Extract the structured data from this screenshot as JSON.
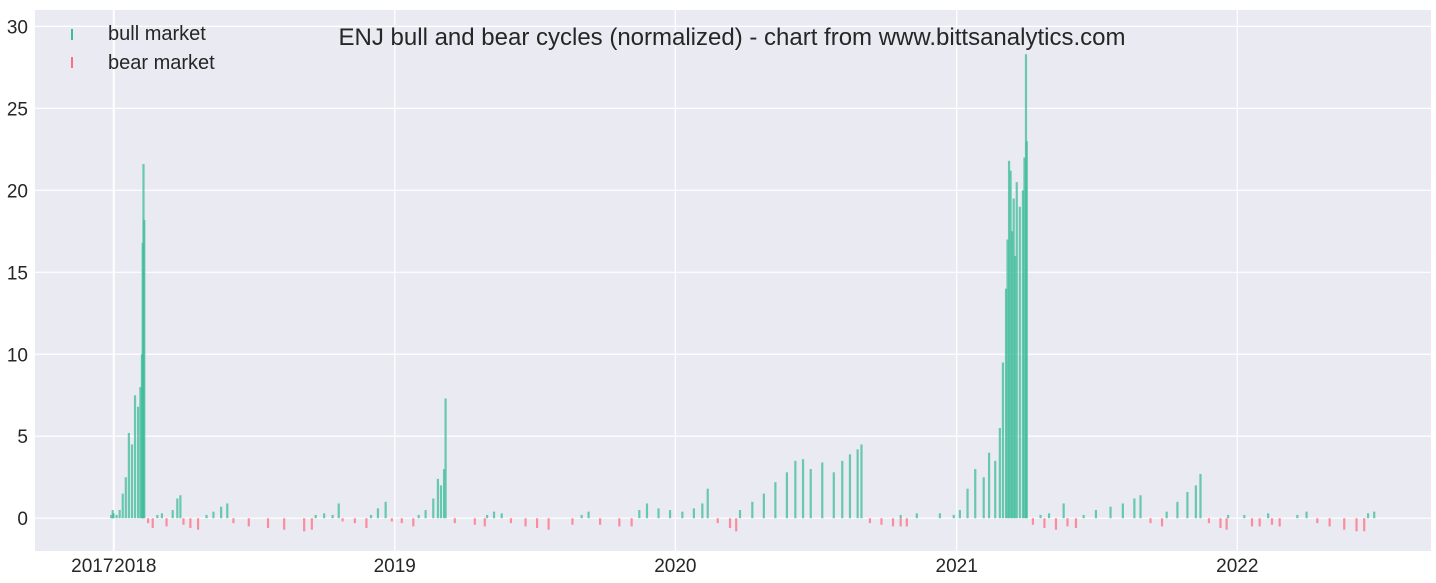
{
  "chart_data": {
    "type": "bar",
    "title": "ENJ bull and bear cycles (normalized)  - chart from www.bittsanalytics.com",
    "xlabel": "",
    "ylabel": "",
    "x_range": [
      "2017-09-20",
      "2022-09-10"
    ],
    "ylim": [
      -2,
      31
    ],
    "y_ticks": [
      0,
      5,
      10,
      15,
      20,
      25,
      30
    ],
    "y_tick_labels": [
      "0",
      "5",
      "10",
      "15",
      "20",
      "25",
      "30"
    ],
    "x_ticks": [
      "2017-12-31",
      "2018-01-01",
      "2019-01-01",
      "2020-01-01",
      "2021-01-01",
      "2022-01-01"
    ],
    "x_tick_labels": [
      "2017",
      "2018",
      "2019",
      "2020",
      "2021",
      "2022"
    ],
    "grid": true,
    "legend": {
      "position": "top-left"
    },
    "colors": {
      "bull": "#3cbc98",
      "bear": "#ff6e80",
      "background": "#eaeaf2",
      "grid": "#ffffff"
    },
    "series": [
      {
        "name": "bull market",
        "points": [
          [
            "2017-12-31",
            0.3
          ],
          [
            "2017-12-28",
            0.2
          ],
          [
            "2017-12-30",
            0.5
          ],
          [
            "2018-01-04",
            0.2
          ],
          [
            "2018-01-08",
            0.5
          ],
          [
            "2018-01-12",
            1.5
          ],
          [
            "2018-01-16",
            2.5
          ],
          [
            "2018-01-20",
            5.2
          ],
          [
            "2018-01-24",
            4.5
          ],
          [
            "2018-01-28",
            7.5
          ],
          [
            "2018-02-01",
            6.8
          ],
          [
            "2018-02-04",
            8.0
          ],
          [
            "2018-02-06",
            10.0
          ],
          [
            "2018-02-07",
            16.8
          ],
          [
            "2018-02-08",
            21.6
          ],
          [
            "2018-02-09",
            18.2
          ],
          [
            "2018-02-26",
            0.2
          ],
          [
            "2018-03-04",
            0.3
          ],
          [
            "2018-03-18",
            0.5
          ],
          [
            "2018-03-24",
            1.2
          ],
          [
            "2018-03-28",
            1.4
          ],
          [
            "2018-05-01",
            0.2
          ],
          [
            "2018-05-10",
            0.4
          ],
          [
            "2018-05-20",
            0.7
          ],
          [
            "2018-05-28",
            0.9
          ],
          [
            "2018-09-20",
            0.2
          ],
          [
            "2018-10-01",
            0.3
          ],
          [
            "2018-10-12",
            0.2
          ],
          [
            "2018-10-20",
            0.9
          ],
          [
            "2018-12-01",
            0.2
          ],
          [
            "2018-12-10",
            0.6
          ],
          [
            "2018-12-20",
            1.0
          ],
          [
            "2019-02-01",
            0.2
          ],
          [
            "2019-02-10",
            0.5
          ],
          [
            "2019-02-20",
            1.2
          ],
          [
            "2019-02-26",
            2.4
          ],
          [
            "2019-03-02",
            2.0
          ],
          [
            "2019-03-06",
            3.0
          ],
          [
            "2019-03-08",
            7.3
          ],
          [
            "2019-05-01",
            0.2
          ],
          [
            "2019-05-10",
            0.4
          ],
          [
            "2019-05-20",
            0.3
          ],
          [
            "2019-09-01",
            0.2
          ],
          [
            "2019-09-10",
            0.4
          ],
          [
            "2019-11-15",
            0.5
          ],
          [
            "2019-11-25",
            0.9
          ],
          [
            "2019-12-10",
            0.6
          ],
          [
            "2019-12-25",
            0.5
          ],
          [
            "2020-01-10",
            0.4
          ],
          [
            "2020-01-25",
            0.6
          ],
          [
            "2020-02-05",
            0.9
          ],
          [
            "2020-02-12",
            1.8
          ],
          [
            "2020-03-25",
            0.5
          ],
          [
            "2020-04-10",
            1.0
          ],
          [
            "2020-04-25",
            1.5
          ],
          [
            "2020-05-10",
            2.2
          ],
          [
            "2020-05-25",
            2.8
          ],
          [
            "2020-06-05",
            3.5
          ],
          [
            "2020-06-15",
            3.6
          ],
          [
            "2020-06-25",
            3.0
          ],
          [
            "2020-07-10",
            3.4
          ],
          [
            "2020-07-25",
            2.8
          ],
          [
            "2020-08-05",
            3.5
          ],
          [
            "2020-08-15",
            3.9
          ],
          [
            "2020-08-25",
            4.2
          ],
          [
            "2020-08-30",
            4.5
          ],
          [
            "2020-10-20",
            0.2
          ],
          [
            "2020-11-10",
            0.3
          ],
          [
            "2020-12-10",
            0.3
          ],
          [
            "2020-12-28",
            0.2
          ],
          [
            "2021-01-05",
            0.5
          ],
          [
            "2021-01-15",
            1.8
          ],
          [
            "2021-01-25",
            3.0
          ],
          [
            "2021-02-05",
            2.5
          ],
          [
            "2021-02-12",
            4.0
          ],
          [
            "2021-02-20",
            3.5
          ],
          [
            "2021-02-26",
            5.5
          ],
          [
            "2021-03-02",
            9.5
          ],
          [
            "2021-03-06",
            14.0
          ],
          [
            "2021-03-08",
            17.0
          ],
          [
            "2021-03-10",
            21.8
          ],
          [
            "2021-03-12",
            21.2
          ],
          [
            "2021-03-14",
            17.5
          ],
          [
            "2021-03-16",
            19.5
          ],
          [
            "2021-03-18",
            16.0
          ],
          [
            "2021-03-20",
            20.5
          ],
          [
            "2021-03-24",
            19.0
          ],
          [
            "2021-03-28",
            20.0
          ],
          [
            "2021-03-30",
            22.0
          ],
          [
            "2021-04-01",
            28.3
          ],
          [
            "2021-04-02",
            23.0
          ],
          [
            "2021-04-20",
            0.2
          ],
          [
            "2021-05-01",
            0.3
          ],
          [
            "2021-05-20",
            0.9
          ],
          [
            "2021-06-15",
            0.2
          ],
          [
            "2021-07-01",
            0.5
          ],
          [
            "2021-07-20",
            0.7
          ],
          [
            "2021-08-05",
            0.9
          ],
          [
            "2021-08-20",
            1.2
          ],
          [
            "2021-08-28",
            1.4
          ],
          [
            "2021-10-01",
            0.4
          ],
          [
            "2021-10-15",
            1.0
          ],
          [
            "2021-10-28",
            1.6
          ],
          [
            "2021-11-08",
            2.0
          ],
          [
            "2021-11-14",
            2.7
          ],
          [
            "2021-12-20",
            0.2
          ],
          [
            "2022-01-10",
            0.2
          ],
          [
            "2022-02-10",
            0.3
          ],
          [
            "2022-03-20",
            0.2
          ],
          [
            "2022-04-01",
            0.4
          ],
          [
            "2022-06-20",
            0.3
          ],
          [
            "2022-06-28",
            0.4
          ]
        ]
      },
      {
        "name": "bear market",
        "points": [
          [
            "2018-02-14",
            -0.3
          ],
          [
            "2018-02-20",
            -0.6
          ],
          [
            "2018-03-10",
            -0.5
          ],
          [
            "2018-04-01",
            -0.4
          ],
          [
            "2018-04-10",
            -0.6
          ],
          [
            "2018-04-20",
            -0.7
          ],
          [
            "2018-06-05",
            -0.3
          ],
          [
            "2018-06-25",
            -0.5
          ],
          [
            "2018-07-20",
            -0.6
          ],
          [
            "2018-08-10",
            -0.7
          ],
          [
            "2018-09-05",
            -0.8
          ],
          [
            "2018-09-15",
            -0.7
          ],
          [
            "2018-10-25",
            -0.2
          ],
          [
            "2018-11-10",
            -0.3
          ],
          [
            "2018-11-25",
            -0.6
          ],
          [
            "2018-12-28",
            -0.2
          ],
          [
            "2019-01-10",
            -0.3
          ],
          [
            "2019-01-25",
            -0.5
          ],
          [
            "2019-03-20",
            -0.3
          ],
          [
            "2019-04-15",
            -0.4
          ],
          [
            "2019-04-28",
            -0.5
          ],
          [
            "2019-06-01",
            -0.3
          ],
          [
            "2019-06-20",
            -0.5
          ],
          [
            "2019-07-05",
            -0.6
          ],
          [
            "2019-07-20",
            -0.7
          ],
          [
            "2019-08-20",
            -0.4
          ],
          [
            "2019-09-25",
            -0.4
          ],
          [
            "2019-10-20",
            -0.5
          ],
          [
            "2019-11-05",
            -0.5
          ],
          [
            "2020-02-25",
            -0.3
          ],
          [
            "2020-03-12",
            -0.6
          ],
          [
            "2020-03-20",
            -0.8
          ],
          [
            "2020-09-10",
            -0.3
          ],
          [
            "2020-09-25",
            -0.4
          ],
          [
            "2020-10-10",
            -0.5
          ],
          [
            "2020-10-20",
            -0.5
          ],
          [
            "2020-10-28",
            -0.5
          ],
          [
            "2021-04-10",
            -0.4
          ],
          [
            "2021-04-25",
            -0.6
          ],
          [
            "2021-05-10",
            -0.7
          ],
          [
            "2021-05-25",
            -0.5
          ],
          [
            "2021-06-05",
            -0.6
          ],
          [
            "2021-09-10",
            -0.3
          ],
          [
            "2021-09-25",
            -0.5
          ],
          [
            "2021-11-25",
            -0.3
          ],
          [
            "2021-12-10",
            -0.6
          ],
          [
            "2021-12-18",
            -0.7
          ],
          [
            "2022-01-20",
            -0.5
          ],
          [
            "2022-01-30",
            -0.5
          ],
          [
            "2022-02-15",
            -0.4
          ],
          [
            "2022-02-25",
            -0.5
          ],
          [
            "2022-04-15",
            -0.3
          ],
          [
            "2022-05-01",
            -0.5
          ],
          [
            "2022-05-20",
            -0.7
          ],
          [
            "2022-06-05",
            -0.8
          ],
          [
            "2022-06-15",
            -0.8
          ]
        ]
      }
    ]
  }
}
